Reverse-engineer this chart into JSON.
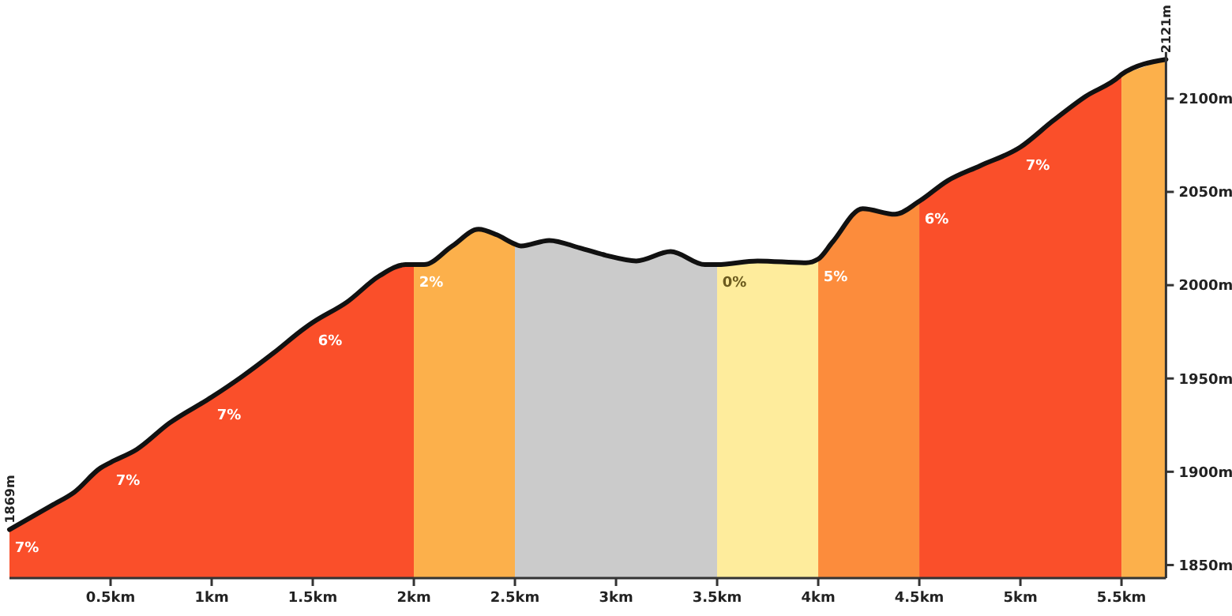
{
  "chart_data": {
    "type": "area",
    "xlim": [
      0,
      5.72
    ],
    "ylim": [
      1843,
      2125
    ],
    "xticks": [
      {
        "value": 0.5,
        "label": "0.5km"
      },
      {
        "value": 1,
        "label": "1km"
      },
      {
        "value": 1.5,
        "label": "1.5km"
      },
      {
        "value": 2,
        "label": "2km"
      },
      {
        "value": 2.5,
        "label": "2.5km"
      },
      {
        "value": 3,
        "label": "3km"
      },
      {
        "value": 3.5,
        "label": "3.5km"
      },
      {
        "value": 4,
        "label": "4km"
      },
      {
        "value": 4.5,
        "label": "4.5km"
      },
      {
        "value": 5,
        "label": "5km"
      },
      {
        "value": 5.5,
        "label": "5.5km"
      }
    ],
    "yticks": [
      {
        "value": 1850,
        "label": "1850m"
      },
      {
        "value": 1900,
        "label": "1900m"
      },
      {
        "value": 1950,
        "label": "1950m"
      },
      {
        "value": 2000,
        "label": "2000m"
      },
      {
        "value": 2050,
        "label": "2050m"
      },
      {
        "value": 2100,
        "label": "2100m"
      }
    ],
    "grid": false,
    "series": [
      {
        "color": "#fa4f2a",
        "x": [
          0,
          0.21,
          0.32,
          0.45,
          0.5,
          0.63,
          0.79,
          1.0,
          1.15,
          1.31,
          1.46,
          1.5,
          1.67,
          1.83,
          1.96,
          2.0
        ],
        "values": [
          1869,
          1882,
          1889,
          1902,
          1905,
          1912,
          1926,
          1940,
          1951,
          1964,
          1977,
          1980,
          1991,
          2005,
          2011,
          2011
        ]
      },
      {
        "color": "#fcb04b",
        "x": [
          2.0,
          2.05,
          2.19,
          2.32,
          2.41,
          2.5
        ],
        "values": [
          2011,
          2011,
          2021,
          2030,
          2027,
          2022
        ]
      },
      {
        "color": "#cbcbcb",
        "x": [
          2.5,
          2.53,
          2.67,
          2.82,
          2.95,
          3.1,
          3.27,
          3.44,
          3.5
        ],
        "values": [
          2022,
          2021,
          2024,
          2020,
          2016,
          2013,
          2018,
          2011,
          2011
        ]
      },
      {
        "color": "#feec9c",
        "x": [
          3.5,
          3.7,
          3.94,
          4.0
        ],
        "values": [
          2011,
          2013,
          2012,
          2014
        ]
      },
      {
        "color": "#fc8c3c",
        "x": [
          4.0,
          4.07,
          4.22,
          4.38,
          4.5
        ],
        "values": [
          2014,
          2023,
          2041,
          2038,
          2045
        ]
      },
      {
        "color": "#fa4f2a",
        "x": [
          4.5,
          4.64,
          4.8,
          5.0,
          5.16,
          5.32,
          5.49,
          5.5
        ],
        "values": [
          2045,
          2056,
          2064,
          2074,
          2088,
          2101,
          2112,
          2113
        ]
      },
      {
        "color": "#fcb04b",
        "x": [
          5.5,
          5.72
        ],
        "values": [
          2113,
          2121
        ]
      },
      {
        "type": "line",
        "color": "#111111",
        "x": [
          0,
          0.21,
          0.32,
          0.45,
          0.5,
          0.63,
          0.79,
          1.0,
          1.15,
          1.31,
          1.46,
          1.5,
          1.67,
          1.83,
          1.96,
          2.0,
          2.05,
          2.19,
          2.32,
          2.41,
          2.5,
          2.53,
          2.67,
          2.82,
          2.95,
          3.1,
          3.27,
          3.44,
          3.5,
          3.7,
          3.94,
          4.0,
          4.07,
          4.22,
          4.38,
          4.5,
          4.64,
          4.8,
          5.0,
          5.16,
          5.32,
          5.49,
          5.5,
          5.72
        ],
        "values": [
          1869,
          1882,
          1889,
          1902,
          1905,
          1912,
          1926,
          1940,
          1951,
          1964,
          1977,
          1980,
          1991,
          2005,
          2011,
          2011,
          2011,
          2021,
          2030,
          2027,
          2022,
          2021,
          2024,
          2020,
          2016,
          2013,
          2018,
          2011,
          2011,
          2013,
          2012,
          2014,
          2023,
          2041,
          2038,
          2045,
          2056,
          2064,
          2074,
          2088,
          2101,
          2112,
          2113,
          2121
        ]
      }
    ],
    "annotations": [
      {
        "text": "7%",
        "x": 0,
        "y": 1869
      },
      {
        "text": "7%",
        "x": 0.5,
        "y": 1905
      },
      {
        "text": "7%",
        "x": 1.0,
        "y": 1940
      },
      {
        "text": "6%",
        "x": 1.5,
        "y": 1980
      },
      {
        "text": "2%",
        "x": 2.0,
        "y": 2011
      },
      {
        "text": "0%",
        "x": 3.5,
        "y": 2011
      },
      {
        "text": "5%",
        "x": 4.0,
        "y": 2014
      },
      {
        "text": "6%",
        "x": 4.5,
        "y": 2045
      },
      {
        "text": "7%",
        "x": 5.0,
        "y": 2074
      },
      {
        "text": "1869m",
        "x": 0,
        "y": 1869
      },
      {
        "text": "2121m",
        "x": 5.72,
        "y": 2121
      }
    ]
  }
}
